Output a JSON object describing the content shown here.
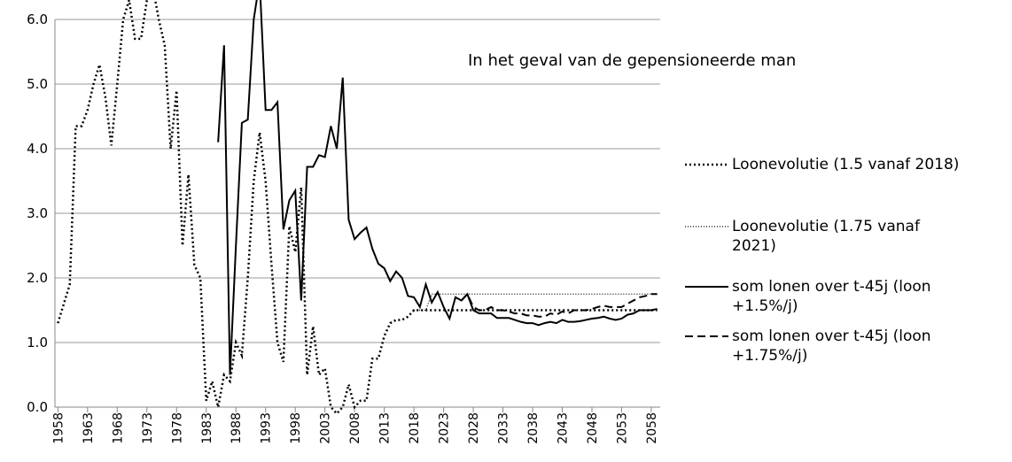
{
  "chart_data": {
    "type": "line",
    "annotation": "In het geval van de gepensioneerde man",
    "xlim": [
      1957.5,
      2059.5
    ],
    "xticks": [
      1958,
      1963,
      1968,
      1973,
      1978,
      1983,
      1988,
      1993,
      1998,
      2003,
      2008,
      2013,
      2018,
      2023,
      2028,
      2033,
      2038,
      2043,
      2048,
      2053,
      2058
    ],
    "ylim": [
      0,
      6
    ],
    "yticks": [
      {
        "value": 0,
        "label": "0.0"
      },
      {
        "value": 1,
        "label": "1.0"
      },
      {
        "value": 2,
        "label": "2.0"
      },
      {
        "value": 3,
        "label": "3.0"
      },
      {
        "value": 4,
        "label": "4.0"
      },
      {
        "value": 5,
        "label": "5.0"
      },
      {
        "value": 6,
        "label": "6.0"
      }
    ],
    "grid": true,
    "series": [
      {
        "name": "Loonevolutie (1.5 vanaf 2018)",
        "color": "#000000",
        "style": "dotted-thick",
        "x": [
          1958,
          1959,
          1960,
          1961,
          1962,
          1963,
          1964,
          1965,
          1966,
          1967,
          1968,
          1969,
          1970,
          1971,
          1972,
          1973,
          1974,
          1975,
          1976,
          1977,
          1978,
          1979,
          1980,
          1981,
          1982,
          1983,
          1984,
          1985,
          1986,
          1987,
          1988,
          1989,
          1990,
          1991,
          1992,
          1993,
          1994,
          1995,
          1996,
          1997,
          1998,
          1999,
          2000,
          2001,
          2002,
          2003,
          2004,
          2005,
          2006,
          2007,
          2008,
          2009,
          2010,
          2011,
          2012,
          2013,
          2014,
          2015,
          2016,
          2017,
          2018,
          2030,
          2040,
          2050,
          2059
        ],
        "values": [
          1.3,
          1.6,
          1.9,
          4.35,
          4.35,
          4.6,
          5.0,
          5.3,
          4.8,
          4.05,
          5.0,
          6.0,
          6.3,
          5.7,
          5.7,
          6.3,
          6.5,
          6.0,
          5.6,
          4.0,
          4.9,
          2.5,
          3.6,
          2.2,
          2.0,
          0.1,
          0.4,
          0.0,
          0.5,
          0.4,
          1.0,
          0.8,
          2.0,
          3.5,
          4.25,
          3.5,
          2.2,
          1.0,
          0.7,
          2.8,
          2.4,
          3.4,
          0.5,
          1.25,
          0.5,
          0.6,
          0.0,
          -0.1,
          0.0,
          0.35,
          0.0,
          0.1,
          0.1,
          0.75,
          0.75,
          1.1,
          1.3,
          1.35,
          1.35,
          1.4,
          1.5,
          1.5,
          1.5,
          1.5,
          1.5
        ]
      },
      {
        "name": "Loonevolutie (1.75 vanaf 2021)",
        "color": "#000000",
        "style": "dotted-thin",
        "x": [
          2018,
          2020,
          2021,
          2030,
          2040,
          2050,
          2059
        ],
        "values": [
          1.5,
          1.5,
          1.75,
          1.75,
          1.75,
          1.75,
          1.75
        ]
      },
      {
        "name": "som lonen over t-45j (loon +1.5%/j)",
        "color": "#000000",
        "style": "solid",
        "x": [
          1985,
          1986,
          1987,
          1988,
          1989,
          1990,
          1991,
          1992,
          1993,
          1994,
          1995,
          1996,
          1997,
          1998,
          1999,
          2000,
          2001,
          2002,
          2003,
          2004,
          2005,
          2006,
          2007,
          2008,
          2009,
          2010,
          2011,
          2012,
          2013,
          2014,
          2015,
          2016,
          2017,
          2018,
          2019,
          2020,
          2021,
          2022,
          2023,
          2024,
          2025,
          2026,
          2027,
          2028,
          2029,
          2030,
          2031,
          2032,
          2033,
          2034,
          2035,
          2036,
          2037,
          2038,
          2039,
          2040,
          2041,
          2042,
          2043,
          2044,
          2045,
          2046,
          2047,
          2048,
          2049,
          2050,
          2051,
          2052,
          2053,
          2054,
          2055,
          2056,
          2057,
          2058,
          2059
        ],
        "values": [
          4.1,
          5.6,
          0.5,
          2.5,
          4.4,
          4.45,
          6.0,
          6.6,
          4.6,
          4.6,
          4.72,
          2.75,
          3.2,
          3.35,
          1.65,
          3.72,
          3.72,
          3.9,
          3.87,
          4.35,
          4.0,
          5.1,
          2.9,
          2.6,
          2.7,
          2.78,
          2.45,
          2.22,
          2.15,
          1.95,
          2.1,
          2.0,
          1.72,
          1.7,
          1.55,
          1.9,
          1.62,
          1.78,
          1.55,
          1.37,
          1.7,
          1.65,
          1.75,
          1.5,
          1.45,
          1.45,
          1.45,
          1.38,
          1.38,
          1.38,
          1.35,
          1.32,
          1.3,
          1.3,
          1.27,
          1.3,
          1.32,
          1.3,
          1.35,
          1.32,
          1.32,
          1.33,
          1.35,
          1.37,
          1.38,
          1.4,
          1.37,
          1.35,
          1.37,
          1.43,
          1.45,
          1.5,
          1.5,
          1.5,
          1.52
        ]
      },
      {
        "name": "som lonen over t-45j (loon +1.75%/j)",
        "color": "#000000",
        "style": "dashed",
        "x": [
          2026,
          2027,
          2028,
          2029,
          2030,
          2031,
          2032,
          2033,
          2034,
          2035,
          2036,
          2037,
          2038,
          2039,
          2040,
          2041,
          2042,
          2043,
          2044,
          2045,
          2046,
          2047,
          2048,
          2049,
          2050,
          2051,
          2052,
          2053,
          2054,
          2055,
          2056,
          2057,
          2058,
          2059
        ],
        "values": [
          1.65,
          1.75,
          1.55,
          1.5,
          1.5,
          1.55,
          1.5,
          1.5,
          1.48,
          1.45,
          1.45,
          1.42,
          1.42,
          1.4,
          1.4,
          1.45,
          1.43,
          1.48,
          1.45,
          1.5,
          1.5,
          1.5,
          1.52,
          1.55,
          1.57,
          1.55,
          1.55,
          1.55,
          1.6,
          1.65,
          1.7,
          1.72,
          1.75,
          1.75
        ]
      }
    ]
  }
}
